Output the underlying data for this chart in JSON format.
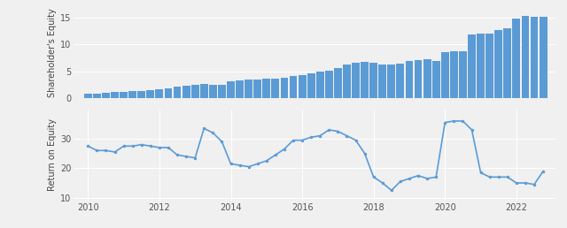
{
  "bar_values": [
    0.8,
    0.9,
    1.0,
    1.1,
    1.2,
    1.3,
    1.4,
    1.5,
    1.7,
    1.9,
    2.1,
    2.3,
    2.5,
    2.6,
    2.5,
    2.5,
    3.2,
    3.3,
    3.4,
    3.5,
    3.6,
    3.7,
    3.8,
    4.1,
    4.3,
    4.6,
    4.9,
    5.2,
    5.6,
    6.2,
    6.6,
    6.7,
    6.6,
    6.3,
    6.2,
    6.5,
    6.9,
    7.1,
    7.2,
    7.0,
    8.5,
    8.7,
    8.7,
    11.8,
    12.1,
    12.0,
    12.7,
    13.0,
    14.9,
    15.3,
    15.2,
    15.1
  ],
  "bar_color": "#5B9BD5",
  "bar_ylim": [
    0,
    17
  ],
  "bar_yticks": [
    0,
    5,
    10,
    15
  ],
  "bar_ylabel": "Shareholder's Equity",
  "line_x": [
    2010.0,
    2010.25,
    2010.5,
    2010.75,
    2011.0,
    2011.25,
    2011.5,
    2011.75,
    2012.0,
    2012.25,
    2012.5,
    2012.75,
    2013.0,
    2013.25,
    2013.5,
    2013.75,
    2014.0,
    2014.25,
    2014.5,
    2014.75,
    2015.0,
    2015.25,
    2015.5,
    2015.75,
    2016.0,
    2016.25,
    2016.5,
    2016.75,
    2017.0,
    2017.25,
    2017.5,
    2017.75,
    2018.0,
    2018.25,
    2018.5,
    2018.75,
    2019.0,
    2019.25,
    2019.5,
    2019.75,
    2020.0,
    2020.25,
    2020.5,
    2020.75,
    2021.0,
    2021.25,
    2021.5,
    2021.75,
    2022.0,
    2022.25,
    2022.5,
    2022.75
  ],
  "line_y": [
    27.5,
    26.0,
    26.0,
    25.5,
    27.5,
    27.5,
    28.0,
    27.5,
    27.0,
    27.0,
    24.5,
    24.0,
    23.5,
    33.5,
    32.0,
    29.0,
    21.5,
    21.0,
    20.5,
    21.5,
    22.5,
    24.5,
    26.5,
    29.5,
    29.5,
    30.5,
    31.0,
    33.0,
    32.5,
    31.0,
    29.5,
    25.0,
    17.0,
    15.0,
    12.5,
    15.5,
    16.5,
    17.5,
    16.5,
    17.0,
    35.5,
    36.0,
    36.0,
    33.0,
    18.5,
    17.0,
    17.0,
    17.0,
    15.0,
    15.0,
    14.5,
    19.0
  ],
  "line_color": "#5B9BD5",
  "line_ylim": [
    9,
    40
  ],
  "line_yticks": [
    10,
    20,
    30
  ],
  "line_ylabel": "Return on Equity",
  "xticks": [
    2010,
    2012,
    2014,
    2016,
    2018,
    2020,
    2022
  ],
  "xticklabels": [
    "2010",
    "2012",
    "2014",
    "2016",
    "2018",
    "2020",
    "2022"
  ],
  "xlim": [
    2009.6,
    2023.1
  ],
  "background_color": "#F0F0F0",
  "grid_color": "#FFFFFF",
  "marker": "o",
  "marker_size": 2.5,
  "line_width": 1.2
}
